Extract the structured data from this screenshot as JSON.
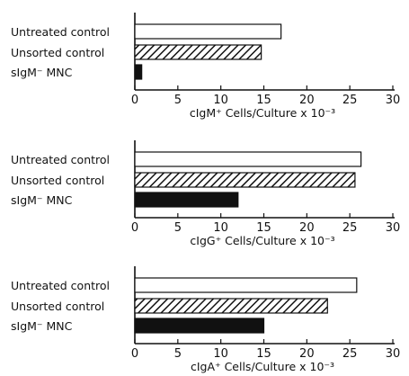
{
  "colors": {
    "ink": "#111111",
    "open_fill": "#ffffff",
    "solid_fill": "#111111"
  },
  "chart_data": [
    {
      "type": "bar",
      "orientation": "horizontal",
      "categories": [
        "Untreated control",
        "Unsorted control",
        "sIgM⁻ MNC"
      ],
      "fills": [
        "open",
        "hatched",
        "solid"
      ],
      "values": [
        17.0,
        14.7,
        0.8
      ],
      "xlim": [
        0,
        30
      ],
      "xticks": [
        0,
        5,
        10,
        15,
        20,
        25,
        30
      ],
      "xlabel": "cIgM⁺ Cells/Culture x 10⁻³",
      "grid": false
    },
    {
      "type": "bar",
      "orientation": "horizontal",
      "categories": [
        "Untreated control",
        "Unsorted control",
        "sIgM⁻ MNC"
      ],
      "fills": [
        "open",
        "hatched",
        "solid"
      ],
      "values": [
        26.3,
        25.6,
        12.0
      ],
      "xlim": [
        0,
        30
      ],
      "xticks": [
        0,
        5,
        10,
        15,
        20,
        25,
        30
      ],
      "xlabel": "cIgG⁺ Cells/Culture x 10⁻³",
      "grid": false
    },
    {
      "type": "bar",
      "orientation": "horizontal",
      "categories": [
        "Untreated control",
        "Unsorted control",
        "sIgM⁻ MNC"
      ],
      "fills": [
        "open",
        "hatched",
        "solid"
      ],
      "values": [
        25.8,
        22.4,
        15.0
      ],
      "xlim": [
        0,
        30
      ],
      "xticks": [
        0,
        5,
        10,
        15,
        20,
        25,
        30
      ],
      "xlabel": "cIgA⁺ Cells/Culture x 10⁻³",
      "grid": false
    }
  ]
}
